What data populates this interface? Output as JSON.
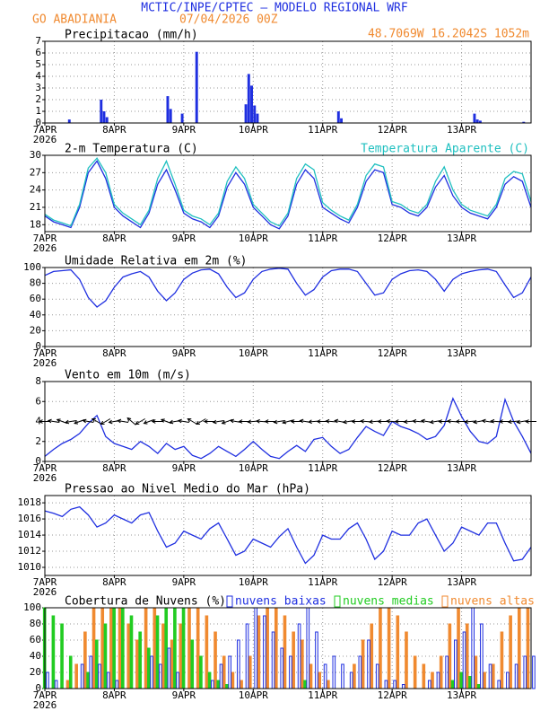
{
  "header": {
    "title": "MCTIC/INPE/CPTEC – MODELO REGIONAL WRF",
    "location": "GO ABADIANIA",
    "datetime": "07/04/2026 00Z",
    "coords": "48.7069W  16.2042S  1052m"
  },
  "chart_data": [
    {
      "type": "bar",
      "title": "Precipitacao (mm/h)",
      "color": "#1f2fe0",
      "x": [
        8,
        19,
        20,
        21,
        42,
        43,
        47,
        52,
        69,
        70,
        71,
        72,
        73,
        101,
        102,
        148,
        149,
        150,
        165
      ],
      "values": [
        0.3,
        2,
        1,
        0.5,
        2.3,
        1.2,
        0.8,
        6.1,
        1.6,
        4.2,
        3.2,
        1.5,
        0.8,
        1.0,
        0.4,
        0.8,
        0.3,
        0.2,
        0.1
      ],
      "xlim": [
        0,
        168
      ],
      "xticks": [
        {
          "value": 0,
          "label": "7APR"
        },
        {
          "value": 24,
          "label": "8APR"
        },
        {
          "value": 48,
          "label": "9APR"
        },
        {
          "value": 72,
          "label": "10APR"
        },
        {
          "value": 96,
          "label": "11APR"
        },
        {
          "value": 120,
          "label": "12APR"
        },
        {
          "value": 144,
          "label": "13APR"
        }
      ],
      "year": "2026",
      "ylim": [
        0,
        7
      ],
      "yticks": [
        0,
        1,
        2,
        3,
        4,
        5,
        6,
        7
      ],
      "grid": true
    },
    {
      "type": "line",
      "title": "2-m Temperatura (C)",
      "x": [
        0,
        3,
        6,
        9,
        12,
        15,
        18,
        21,
        24,
        27,
        30,
        33,
        36,
        39,
        42,
        45,
        48,
        51,
        54,
        57,
        60,
        63,
        66,
        69,
        72,
        75,
        78,
        81,
        84,
        87,
        90,
        93,
        96,
        99,
        102,
        105,
        108,
        111,
        114,
        117,
        120,
        123,
        126,
        129,
        132,
        135,
        138,
        141,
        144,
        147,
        150,
        153,
        156,
        159,
        162,
        165,
        168
      ],
      "series": [
        {
          "color": "#1f2fe0",
          "values": [
            19.5,
            18.5,
            18,
            17.5,
            21,
            27,
            29,
            26,
            21,
            19.5,
            18.5,
            17.5,
            20,
            25,
            27.5,
            24,
            20,
            19,
            18.5,
            17.5,
            19.5,
            24.5,
            27,
            25,
            21,
            19.5,
            18,
            17.3,
            19.5,
            25,
            27.5,
            26,
            21,
            20,
            19,
            18.3,
            21,
            25.5,
            27.5,
            27,
            21.5,
            21,
            20,
            19.5,
            21,
            24.5,
            26.5,
            23,
            21,
            20,
            19.5,
            19,
            21,
            25,
            26.3,
            25.5,
            21
          ]
        },
        {
          "name": "Temperatura Aparente (C)",
          "color": "#20c0c0",
          "values": [
            19.8,
            18.8,
            18.3,
            17.8,
            21.5,
            27.8,
            29.5,
            27,
            21.5,
            20,
            19,
            18,
            20.5,
            26,
            29,
            25,
            20.5,
            19.5,
            19,
            18,
            20,
            25.5,
            28,
            26,
            21.5,
            20,
            18.5,
            17.8,
            20,
            26,
            28.5,
            27.5,
            21.8,
            20.5,
            19.5,
            18.8,
            21.5,
            26.5,
            28.5,
            28,
            22,
            21.5,
            20.5,
            20,
            21.5,
            25.5,
            28,
            24,
            21.5,
            20.5,
            20,
            19.5,
            21.5,
            26,
            27.2,
            26.8,
            22
          ]
        }
      ],
      "xlim": [
        0,
        168
      ],
      "xticks": [
        {
          "value": 0,
          "label": "7APR"
        },
        {
          "value": 24,
          "label": "8APR"
        },
        {
          "value": 48,
          "label": "9APR"
        },
        {
          "value": 72,
          "label": "10APR"
        },
        {
          "value": 96,
          "label": "11APR"
        },
        {
          "value": 120,
          "label": "12APR"
        },
        {
          "value": 144,
          "label": "13APR"
        }
      ],
      "year": "2026",
      "ylim": [
        16.8,
        30
      ],
      "yticks": [
        18,
        21,
        24,
        27,
        30
      ],
      "grid": true
    },
    {
      "type": "line",
      "title": "Umidade Relativa em 2m (%)",
      "x": [
        0,
        3,
        6,
        9,
        12,
        15,
        18,
        21,
        24,
        27,
        30,
        33,
        36,
        39,
        42,
        45,
        48,
        51,
        54,
        57,
        60,
        63,
        66,
        69,
        72,
        75,
        78,
        81,
        84,
        87,
        90,
        93,
        96,
        99,
        102,
        105,
        108,
        111,
        114,
        117,
        120,
        123,
        126,
        129,
        132,
        135,
        138,
        141,
        144,
        147,
        150,
        153,
        156,
        159,
        162,
        165,
        168
      ],
      "series": [
        {
          "color": "#1f2fe0",
          "values": [
            90,
            95,
            96,
            97,
            85,
            62,
            50,
            58,
            75,
            88,
            92,
            95,
            88,
            70,
            58,
            68,
            85,
            93,
            97,
            98,
            92,
            75,
            62,
            68,
            85,
            95,
            98,
            99,
            98,
            80,
            65,
            72,
            88,
            96,
            98,
            98,
            95,
            80,
            65,
            68,
            85,
            92,
            96,
            97,
            95,
            85,
            70,
            85,
            92,
            95,
            97,
            98,
            95,
            78,
            62,
            68,
            88
          ]
        }
      ],
      "xlim": [
        0,
        168
      ],
      "xticks": [
        {
          "value": 0,
          "label": "7APR"
        },
        {
          "value": 24,
          "label": "8APR"
        },
        {
          "value": 48,
          "label": "9APR"
        },
        {
          "value": 72,
          "label": "10APR"
        },
        {
          "value": 96,
          "label": "11APR"
        },
        {
          "value": 120,
          "label": "12APR"
        },
        {
          "value": 144,
          "label": "13APR"
        }
      ],
      "year": "2026",
      "ylim": [
        0,
        100
      ],
      "yticks": [
        0,
        20,
        40,
        60,
        80,
        100
      ],
      "grid": true
    },
    {
      "type": "line",
      "title": "Vento em 10m (m/s)",
      "x": [
        0,
        3,
        6,
        9,
        12,
        15,
        18,
        21,
        24,
        27,
        30,
        33,
        36,
        39,
        42,
        45,
        48,
        51,
        54,
        57,
        60,
        63,
        66,
        69,
        72,
        75,
        78,
        81,
        84,
        87,
        90,
        93,
        96,
        99,
        102,
        105,
        108,
        111,
        114,
        117,
        120,
        123,
        126,
        129,
        132,
        135,
        138,
        141,
        144,
        147,
        150,
        153,
        156,
        159,
        162,
        165,
        168
      ],
      "series": [
        {
          "color": "#1f2fe0",
          "values": [
            0.5,
            1.2,
            1.8,
            2.2,
            2.8,
            3.8,
            4.6,
            2.5,
            1.8,
            1.5,
            1.2,
            2.0,
            1.5,
            0.8,
            1.8,
            1.2,
            1.5,
            0.6,
            0.3,
            0.8,
            1.5,
            1.0,
            0.5,
            1.2,
            2.0,
            1.2,
            0.5,
            0.3,
            1.0,
            1.6,
            1.0,
            2.2,
            2.4,
            1.5,
            0.8,
            1.2,
            2.4,
            3.5,
            3.0,
            2.6,
            4.0,
            3.5,
            3.2,
            2.8,
            2.2,
            2.5,
            3.6,
            6.3,
            4.5,
            3.0,
            2.0,
            1.8,
            2.5,
            6.2,
            4.0,
            2.5,
            0.8
          ]
        }
      ],
      "directions": [
        90,
        100,
        110,
        80,
        70,
        100,
        120,
        60,
        80,
        100,
        130,
        60,
        70,
        90,
        110,
        80,
        100,
        120,
        60,
        90,
        80,
        70,
        100,
        90,
        85,
        95,
        90,
        80,
        75,
        90,
        100,
        85,
        90,
        95,
        100,
        80,
        90,
        95,
        85,
        90,
        95,
        90,
        85,
        95,
        100,
        80,
        90,
        95,
        90,
        85,
        80,
        100,
        95,
        90,
        85,
        80,
        90
      ],
      "xlim": [
        0,
        168
      ],
      "xticks": [
        {
          "value": 0,
          "label": "7APR"
        },
        {
          "value": 24,
          "label": "8APR"
        },
        {
          "value": 48,
          "label": "9APR"
        },
        {
          "value": 72,
          "label": "10APR"
        },
        {
          "value": 96,
          "label": "11APR"
        },
        {
          "value": 120,
          "label": "12APR"
        },
        {
          "value": 144,
          "label": "13APR"
        }
      ],
      "year": "2026",
      "ylim": [
        0,
        8
      ],
      "yticks": [
        0,
        2,
        4,
        6,
        8
      ],
      "grid": true
    },
    {
      "type": "line",
      "title": "Pressao ao Nivel Medio do Mar (hPa)",
      "x": [
        0,
        3,
        6,
        9,
        12,
        15,
        18,
        21,
        24,
        27,
        30,
        33,
        36,
        39,
        42,
        45,
        48,
        51,
        54,
        57,
        60,
        63,
        66,
        69,
        72,
        75,
        78,
        81,
        84,
        87,
        90,
        93,
        96,
        99,
        102,
        105,
        108,
        111,
        114,
        117,
        120,
        123,
        126,
        129,
        132,
        135,
        138,
        141,
        144,
        147,
        150,
        153,
        156,
        159,
        162,
        165,
        168
      ],
      "series": [
        {
          "color": "#1f2fe0",
          "values": [
            1017,
            1016.7,
            1016.3,
            1017.2,
            1017.5,
            1016.5,
            1015,
            1015.5,
            1016.5,
            1016,
            1015.5,
            1016.5,
            1016.8,
            1014.5,
            1012.5,
            1013,
            1014.5,
            1014,
            1013.5,
            1014.8,
            1015.5,
            1013.5,
            1011.5,
            1012,
            1013.5,
            1013,
            1012.5,
            1013.8,
            1014.8,
            1012.5,
            1010.5,
            1011.5,
            1014,
            1013.5,
            1013.5,
            1014.8,
            1015.5,
            1013.5,
            1011,
            1012,
            1014.5,
            1014,
            1014,
            1015.5,
            1016,
            1014,
            1012,
            1013,
            1015,
            1014.5,
            1014,
            1015.5,
            1015.5,
            1013,
            1010.8,
            1011,
            1012.5
          ]
        }
      ],
      "xlim": [
        0,
        168
      ],
      "xticks": [
        {
          "value": 0,
          "label": "7APR"
        },
        {
          "value": 24,
          "label": "8APR"
        },
        {
          "value": 48,
          "label": "9APR"
        },
        {
          "value": 72,
          "label": "10APR"
        },
        {
          "value": 96,
          "label": "11APR"
        },
        {
          "value": 120,
          "label": "12APR"
        },
        {
          "value": 144,
          "label": "13APR"
        }
      ],
      "year": "2026",
      "ylim": [
        1009,
        1018.9
      ],
      "yticks": [
        1010,
        1012,
        1014,
        1016,
        1018
      ],
      "grid": true
    },
    {
      "type": "bar",
      "title": "Cobertura de Nuvens (%)",
      "x": [
        0,
        3,
        6,
        9,
        12,
        15,
        18,
        21,
        24,
        27,
        30,
        33,
        36,
        39,
        42,
        45,
        48,
        51,
        54,
        57,
        60,
        63,
        66,
        69,
        72,
        75,
        78,
        81,
        84,
        87,
        90,
        93,
        96,
        99,
        102,
        105,
        108,
        111,
        114,
        117,
        120,
        123,
        126,
        129,
        132,
        135,
        138,
        141,
        144,
        147,
        150,
        153,
        156,
        159,
        162,
        165,
        168
      ],
      "series": [
        {
          "name": "nuvens altas",
          "color": "#f08a30",
          "values": [
            0,
            0,
            0,
            10,
            30,
            70,
            100,
            100,
            100,
            100,
            80,
            60,
            100,
            100,
            80,
            60,
            80,
            100,
            100,
            90,
            70,
            40,
            20,
            10,
            40,
            90,
            100,
            100,
            90,
            70,
            60,
            30,
            20,
            10,
            0,
            0,
            30,
            60,
            80,
            100,
            100,
            90,
            70,
            40,
            30,
            20,
            40,
            80,
            100,
            80,
            40,
            20,
            30,
            70,
            90,
            100,
            100
          ]
        },
        {
          "name": "nuvens medias",
          "color": "#22cc22",
          "values": [
            100,
            90,
            80,
            40,
            0,
            20,
            60,
            80,
            100,
            100,
            90,
            70,
            50,
            90,
            100,
            100,
            100,
            60,
            40,
            20,
            10,
            5,
            0,
            0,
            0,
            0,
            0,
            0,
            0,
            0,
            10,
            0,
            0,
            0,
            0,
            0,
            0,
            0,
            0,
            0,
            0,
            0,
            0,
            0,
            0,
            0,
            0,
            10,
            20,
            15,
            5,
            0,
            0,
            0,
            0,
            0,
            0
          ]
        },
        {
          "name": "nuvens baixas",
          "color": "#1f2fe0",
          "values": [
            20,
            10,
            0,
            0,
            30,
            40,
            30,
            20,
            10,
            0,
            0,
            0,
            40,
            30,
            50,
            20,
            0,
            0,
            0,
            10,
            30,
            40,
            60,
            80,
            100,
            90,
            70,
            50,
            40,
            80,
            100,
            70,
            30,
            40,
            30,
            20,
            40,
            60,
            30,
            10,
            10,
            5,
            0,
            0,
            10,
            20,
            40,
            60,
            70,
            100,
            80,
            30,
            10,
            20,
            30,
            40,
            40
          ]
        }
      ],
      "xlim": [
        0,
        168
      ],
      "xticks": [
        {
          "value": 0,
          "label": "7APR"
        },
        {
          "value": 24,
          "label": "8APR"
        },
        {
          "value": 48,
          "label": "9APR"
        },
        {
          "value": 72,
          "label": "10APR"
        },
        {
          "value": 96,
          "label": "11APR"
        },
        {
          "value": 120,
          "label": "12APR"
        },
        {
          "value": 144,
          "label": "13APR"
        }
      ],
      "year": "2026",
      "ylim": [
        0,
        100
      ],
      "yticks": [
        0,
        20,
        40,
        60,
        80,
        100
      ],
      "grid": true
    }
  ]
}
